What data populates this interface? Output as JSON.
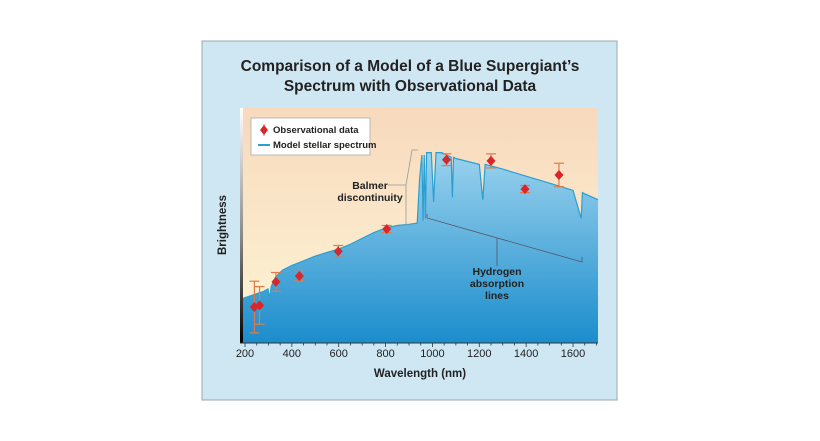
{
  "chart_data": {
    "type": "line",
    "title": "Comparison of a Model of a Blue Supergiant's Spectrum with Observational Data",
    "title_lines": [
      "Comparison of a Model of a Blue Supergiant’s",
      "Spectrum with Observational Data"
    ],
    "xlabel": "Wavelength (nm)",
    "ylabel": "Brightness",
    "xlim": [
      190,
      1720
    ],
    "ylim": [
      0,
      100
    ],
    "xticks": [
      200,
      400,
      600,
      800,
      1000,
      1200,
      1400,
      1600
    ],
    "yticks": [],
    "grid": false,
    "legend_placement": "top-left",
    "legend": [
      "Observational data",
      "Model stellar spectrum"
    ],
    "series": [
      {
        "name": "Model stellar spectrum",
        "color": "#2a9fd0",
        "x": [
          190,
          280,
          298,
          305,
          312,
          330,
          360,
          400,
          450,
          500,
          550,
          600,
          650,
          700,
          750,
          800,
          850,
          900,
          935,
          945,
          955,
          960,
          965,
          970,
          975,
          980,
          995,
          1005,
          1015,
          1040,
          1080,
          1085,
          1090,
          1100,
          1200,
          1215,
          1225,
          1300,
          1400,
          1500,
          1600,
          1635,
          1640,
          1650,
          1720
        ],
        "y": [
          19,
          22,
          23,
          19,
          24,
          28,
          31,
          33,
          35,
          37,
          38.5,
          40,
          42,
          44.5,
          47,
          49,
          50,
          50.5,
          51,
          70,
          80,
          52,
          80,
          53,
          81,
          81,
          81,
          60,
          81,
          81,
          79,
          62,
          79,
          78.5,
          76,
          61,
          76,
          74,
          71,
          68,
          65,
          53,
          64,
          63.5,
          61
        ]
      },
      {
        "name": "Observational data",
        "color": "#d9262b",
        "error_color": "#e07a4a",
        "x": [
          240,
          262,
          332,
          432,
          598,
          805,
          1060,
          1250,
          1395,
          1540
        ],
        "y": [
          15.3,
          16,
          26,
          28.5,
          39,
          48.5,
          78,
          77.5,
          65.5,
          71.5
        ],
        "yerr": [
          11,
          8,
          4,
          2,
          2.5,
          1.5,
          2.5,
          3,
          1.5,
          5
        ]
      }
    ],
    "annotations": [
      {
        "text_lines": [
          "Balmer",
          "discontinuity"
        ],
        "x": 920
      },
      {
        "text_lines": [
          "Hydrogen",
          "absorption",
          "lines"
        ],
        "x_range": [
          970,
          1640
        ]
      }
    ]
  },
  "colors": {
    "panel": "#cfe7f3",
    "panel_border": "#9aa9b2",
    "bg_top": "#f8d9bd",
    "bg_bottom": "#fdf5d6",
    "fill_top": "#9ad2ee",
    "fill_bottom": "#1b8dcc"
  }
}
